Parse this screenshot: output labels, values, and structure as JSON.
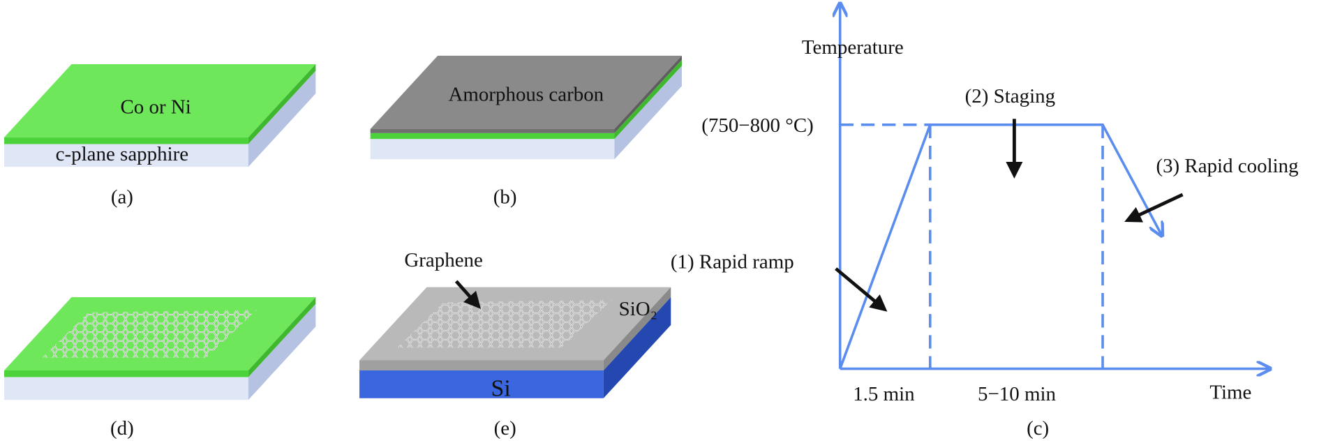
{
  "panels": [
    {
      "label": "(a)",
      "layers": [
        "Co or Ni",
        "c-plane sapphire"
      ]
    },
    {
      "label": "(b)",
      "layers": [
        "Amorphous carbon"
      ]
    },
    {
      "label": "(d)"
    },
    {
      "label": "(e)",
      "annotations": [
        "Graphene",
        "SiO₂",
        "Si"
      ]
    }
  ],
  "process_plot": {
    "label": "(c)",
    "y_axis_label": "Temperature",
    "x_axis_label": "Time",
    "temperature": "(750−800 °C)",
    "steps": [
      "(1) Rapid ramp",
      "(2) Staging",
      "(3) Rapid cooling"
    ],
    "durations": [
      "1.5 min",
      "5−10 min"
    ]
  }
}
